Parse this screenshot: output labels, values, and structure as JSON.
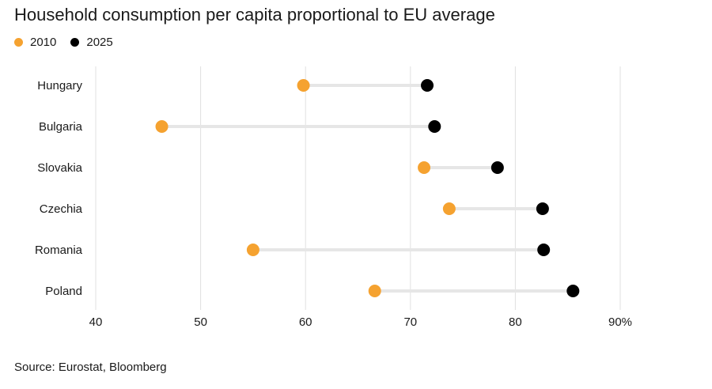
{
  "header": {
    "title": "Household consumption per capita proportional to EU average"
  },
  "legend": [
    {
      "label": "2010",
      "color": "#f5a230"
    },
    {
      "label": "2025",
      "color": "#000000"
    }
  ],
  "source": "Source: Eurostat, Bloomberg",
  "chart_data": {
    "type": "scatter",
    "title": "Household consumption per capita proportional to EU average",
    "xlabel": "",
    "ylabel": "",
    "xlim": [
      40,
      90
    ],
    "x_ticks": [
      40,
      50,
      60,
      70,
      80,
      90
    ],
    "x_tick_labels": [
      "40",
      "50",
      "60",
      "70",
      "80",
      "90%"
    ],
    "grid": "vertical",
    "legend_position": "top-left",
    "categories": [
      "Hungary",
      "Bulgaria",
      "Slovakia",
      "Czechia",
      "Romania",
      "Poland"
    ],
    "series": [
      {
        "name": "2010",
        "color": "#f5a230",
        "values": [
          59.8,
          46.3,
          71.3,
          73.7,
          55.0,
          66.6
        ]
      },
      {
        "name": "2025",
        "color": "#000000",
        "values": [
          71.6,
          72.3,
          78.3,
          82.6,
          82.7,
          85.5
        ]
      }
    ],
    "connector_color": "#e6e6e6",
    "grid_color": "#e0e0e0"
  }
}
